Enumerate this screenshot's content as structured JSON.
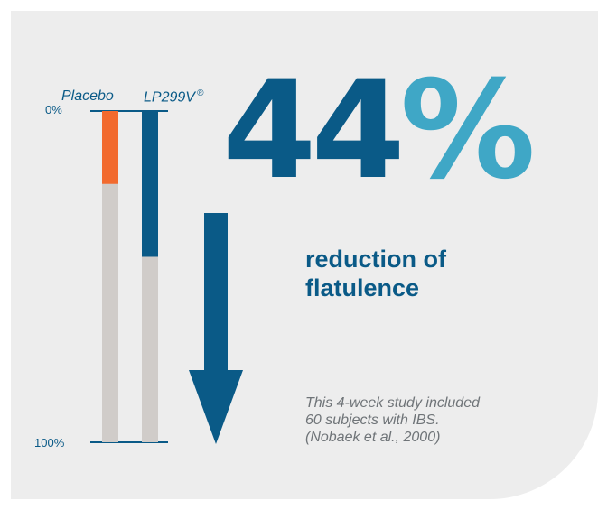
{
  "headline": {
    "number": "44",
    "percent_sign": "%",
    "subtitle_line1": "reduction of",
    "subtitle_line2": "flatulence"
  },
  "note": {
    "line1": "This 4-week study included",
    "line2": "60 subjects with IBS.",
    "line3": "(Nobaek et al., 2000)"
  },
  "colors": {
    "background": "#ededed",
    "track": "#d0ccc9",
    "placebo_fill": "#f26a2e",
    "treatment_fill": "#0a5a87",
    "percent_sign": "#3fa7c6",
    "text_dark": "#0a5a87",
    "note_text": "#6f7478"
  },
  "icons": {
    "down_arrow": "arrow-down-icon"
  },
  "chart_data": {
    "type": "bar",
    "orientation": "vertical-downward",
    "categories": [
      "Placebo",
      "LP299V"
    ],
    "category_marks": [
      "",
      "®"
    ],
    "series": [
      {
        "name": "",
        "values": [
          0.22,
          0.44
        ]
      }
    ],
    "ylim": [
      0,
      1
    ],
    "tick_labels": [
      "0%",
      "100%"
    ],
    "xlabel": "",
    "ylabel": "",
    "title": ""
  }
}
